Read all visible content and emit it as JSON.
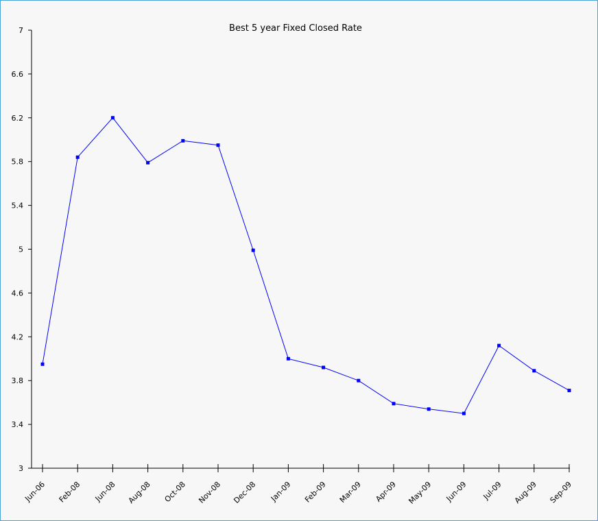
{
  "chart_data": {
    "type": "line",
    "title": "Best 5 year Fixed Closed Rate",
    "xlabel": "",
    "ylabel": "",
    "categories": [
      "Jun-06",
      "Feb-08",
      "Jun-08",
      "Aug-08",
      "Oct-08",
      "Nov-08",
      "Dec-08",
      "Jan-09",
      "Feb-09",
      "Mar-09",
      "Apr-09",
      "May-09",
      "Jun-09",
      "Jul-09",
      "Aug-09",
      "Sep-09"
    ],
    "series": [
      {
        "values": [
          3.95,
          5.84,
          6.2,
          5.79,
          5.99,
          5.95,
          4.99,
          4.0,
          3.92,
          3.8,
          3.59,
          3.54,
          3.5,
          4.12,
          3.89,
          3.71
        ]
      }
    ],
    "ylim": [
      3,
      7
    ],
    "yticks": [
      "3",
      "3.4",
      "3.8",
      "4.2",
      "4.6",
      "5",
      "5.4",
      "5.8",
      "6.2",
      "6.6",
      "7"
    ],
    "line_color": "#0000ff",
    "background_color": "#f7f7f7",
    "grid": false
  }
}
